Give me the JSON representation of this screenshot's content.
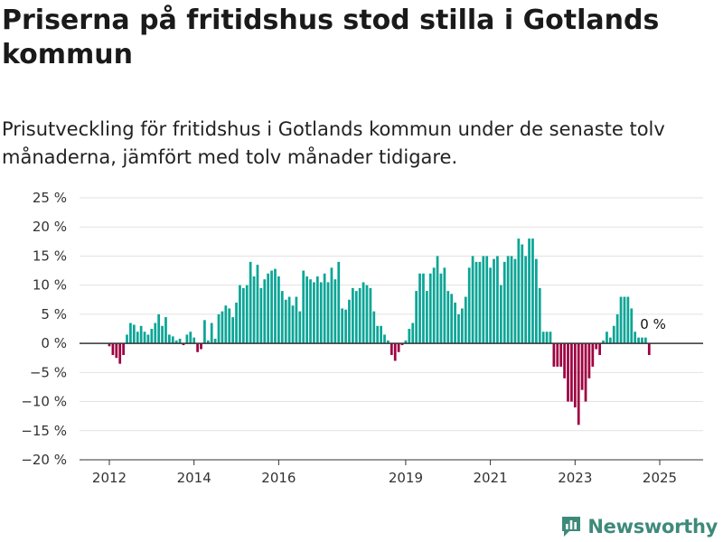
{
  "header": {
    "title": "Priserna på fritidshus stod stilla i Gotlands kommun",
    "subtitle": "Prisutveckling för fritidshus i Gotlands kommun under de senaste tolv månaderna, jämfört med tolv månader tidigare."
  },
  "brand": {
    "name": "Newsworthy",
    "icon": "newsworthy-logo-icon"
  },
  "colors": {
    "positive": "#0aa596",
    "negative": "#9e0041",
    "zero_line": "#333333",
    "grid": "#e2e2e2",
    "brand": "#3e8a7a"
  },
  "chart_data": {
    "type": "bar",
    "ylim": [
      -20,
      25
    ],
    "y_ticks": [
      25,
      20,
      15,
      10,
      5,
      0,
      -5,
      -10,
      -15,
      -20
    ],
    "y_tick_labels": [
      "25 %",
      "20 %",
      "15 %",
      "10 %",
      "5 %",
      "0 %",
      "−5 %",
      "−10 %",
      "−15 %",
      "−20 %"
    ],
    "x_ticks": [
      2012,
      2014,
      2016,
      2019,
      2021,
      2023,
      2025
    ],
    "x_tick_labels": [
      "2012",
      "2014",
      "2016",
      "2019",
      "2021",
      "2023",
      "2025"
    ],
    "annotation": "0 %",
    "grid": true,
    "points": [
      [
        "2012-01",
        -0.5
      ],
      [
        "2012-02",
        -2
      ],
      [
        "2012-03",
        -2.5
      ],
      [
        "2012-04",
        -3.5
      ],
      [
        "2012-05",
        -2
      ],
      [
        "2012-06",
        1.5
      ],
      [
        "2012-07",
        3.5
      ],
      [
        "2012-08",
        3.2
      ],
      [
        "2012-09",
        2
      ],
      [
        "2012-10",
        3
      ],
      [
        "2012-11",
        2
      ],
      [
        "2012-12",
        1.5
      ],
      [
        "2013-01",
        2.5
      ],
      [
        "2013-02",
        3.5
      ],
      [
        "2013-03",
        5
      ],
      [
        "2013-04",
        3
      ],
      [
        "2013-05",
        4.5
      ],
      [
        "2013-06",
        1.5
      ],
      [
        "2013-07",
        1.2
      ],
      [
        "2013-08",
        0.5
      ],
      [
        "2013-09",
        0.8
      ],
      [
        "2013-10",
        -0.3
      ],
      [
        "2013-11",
        1.5
      ],
      [
        "2013-12",
        2
      ],
      [
        "2014-01",
        1
      ],
      [
        "2014-02",
        -1.5
      ],
      [
        "2014-03",
        -1
      ],
      [
        "2014-04",
        4
      ],
      [
        "2014-05",
        0.5
      ],
      [
        "2014-06",
        3.5
      ],
      [
        "2014-07",
        0.8
      ],
      [
        "2014-08",
        5
      ],
      [
        "2014-09",
        5.5
      ],
      [
        "2014-10",
        6.5
      ],
      [
        "2014-11",
        6
      ],
      [
        "2014-12",
        4.5
      ],
      [
        "2015-01",
        7
      ],
      [
        "2015-02",
        10
      ],
      [
        "2015-03",
        9.5
      ],
      [
        "2015-04",
        10
      ],
      [
        "2015-05",
        14
      ],
      [
        "2015-06",
        11.5
      ],
      [
        "2015-07",
        13.5
      ],
      [
        "2015-08",
        9.5
      ],
      [
        "2015-09",
        11
      ],
      [
        "2015-10",
        12
      ],
      [
        "2015-11",
        12.5
      ],
      [
        "2015-12",
        12.8
      ],
      [
        "2016-01",
        11.5
      ],
      [
        "2016-02",
        9
      ],
      [
        "2016-03",
        7.5
      ],
      [
        "2016-04",
        8
      ],
      [
        "2016-05",
        6.5
      ],
      [
        "2016-06",
        8
      ],
      [
        "2016-07",
        5.5
      ],
      [
        "2016-08",
        12.5
      ],
      [
        "2016-09",
        11.5
      ],
      [
        "2016-10",
        11
      ],
      [
        "2016-11",
        10.5
      ],
      [
        "2016-12",
        11.5
      ],
      [
        "2017-01",
        10.5
      ],
      [
        "2017-02",
        12
      ],
      [
        "2017-03",
        10.5
      ],
      [
        "2017-04",
        13
      ],
      [
        "2017-05",
        11
      ],
      [
        "2017-06",
        14
      ],
      [
        "2017-07",
        6
      ],
      [
        "2017-08",
        5.8
      ],
      [
        "2017-09",
        7.5
      ],
      [
        "2017-10",
        9.5
      ],
      [
        "2017-11",
        9
      ],
      [
        "2017-12",
        9.5
      ],
      [
        "2018-01",
        10.5
      ],
      [
        "2018-02",
        10
      ],
      [
        "2018-03",
        9.5
      ],
      [
        "2018-04",
        5.5
      ],
      [
        "2018-05",
        3
      ],
      [
        "2018-06",
        3
      ],
      [
        "2018-07",
        1.5
      ],
      [
        "2018-08",
        0.5
      ],
      [
        "2018-09",
        -2
      ],
      [
        "2018-10",
        -3
      ],
      [
        "2018-11",
        -1.5
      ],
      [
        "2018-12",
        -0.3
      ],
      [
        "2019-01",
        0.5
      ],
      [
        "2019-02",
        2.5
      ],
      [
        "2019-03",
        3.5
      ],
      [
        "2019-04",
        9
      ],
      [
        "2019-05",
        12
      ],
      [
        "2019-06",
        12
      ],
      [
        "2019-07",
        9
      ],
      [
        "2019-08",
        12
      ],
      [
        "2019-09",
        13
      ],
      [
        "2019-10",
        15
      ],
      [
        "2019-11",
        12
      ],
      [
        "2019-12",
        13
      ],
      [
        "2020-01",
        9
      ],
      [
        "2020-02",
        8.5
      ],
      [
        "2020-03",
        7
      ],
      [
        "2020-04",
        5
      ],
      [
        "2020-05",
        6
      ],
      [
        "2020-06",
        8
      ],
      [
        "2020-07",
        13
      ],
      [
        "2020-08",
        15
      ],
      [
        "2020-09",
        14
      ],
      [
        "2020-10",
        14
      ],
      [
        "2020-11",
        15
      ],
      [
        "2020-12",
        15
      ],
      [
        "2021-01",
        13
      ],
      [
        "2021-02",
        14.5
      ],
      [
        "2021-03",
        15
      ],
      [
        "2021-04",
        10
      ],
      [
        "2021-05",
        14
      ],
      [
        "2021-06",
        15
      ],
      [
        "2021-07",
        15
      ],
      [
        "2021-08",
        14.5
      ],
      [
        "2021-09",
        18
      ],
      [
        "2021-10",
        17
      ],
      [
        "2021-11",
        15
      ],
      [
        "2021-12",
        18
      ],
      [
        "2022-01",
        18
      ],
      [
        "2022-02",
        14.5
      ],
      [
        "2022-03",
        9.5
      ],
      [
        "2022-04",
        2
      ],
      [
        "2022-05",
        2
      ],
      [
        "2022-06",
        2
      ],
      [
        "2022-07",
        -4
      ],
      [
        "2022-08",
        -4
      ],
      [
        "2022-09",
        -4
      ],
      [
        "2022-10",
        -6
      ],
      [
        "2022-11",
        -10
      ],
      [
        "2022-12",
        -10
      ],
      [
        "2023-01",
        -11
      ],
      [
        "2023-02",
        -14
      ],
      [
        "2023-03",
        -8
      ],
      [
        "2023-04",
        -10
      ],
      [
        "2023-05",
        -6
      ],
      [
        "2023-06",
        -4
      ],
      [
        "2023-07",
        -1
      ],
      [
        "2023-08",
        -2
      ],
      [
        "2023-09",
        0.5
      ],
      [
        "2023-10",
        2
      ],
      [
        "2023-11",
        1
      ],
      [
        "2023-12",
        3
      ],
      [
        "2024-01",
        5
      ],
      [
        "2024-02",
        8
      ],
      [
        "2024-03",
        8
      ],
      [
        "2024-04",
        8
      ],
      [
        "2024-05",
        6
      ],
      [
        "2024-06",
        2
      ],
      [
        "2024-07",
        1
      ],
      [
        "2024-08",
        1
      ],
      [
        "2024-09",
        1
      ],
      [
        "2024-10",
        -2
      ]
    ]
  }
}
